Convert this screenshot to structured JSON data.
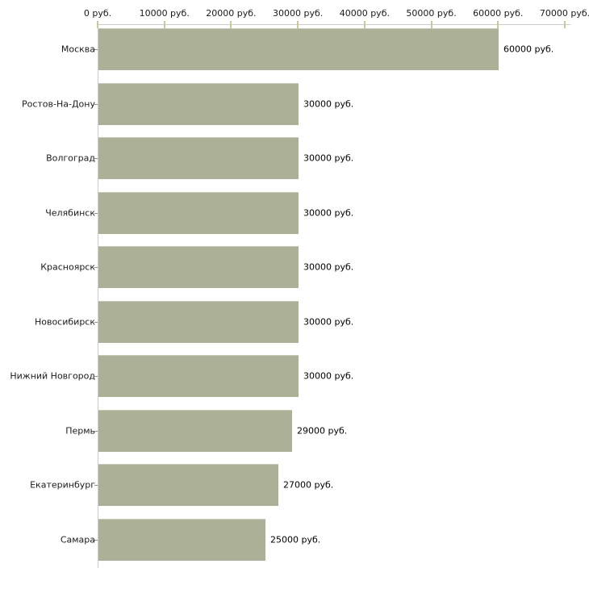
{
  "page": {
    "background": "#ffffff"
  },
  "chart_data": {
    "type": "bar",
    "orientation": "horizontal",
    "title": "",
    "xlabel": "",
    "ylabel": "",
    "unit": "руб.",
    "grid": false,
    "legend_position": "none",
    "categories": [
      "Москва",
      "Ростов-На-Дону",
      "Волгоград",
      "Челябинск",
      "Красноярск",
      "Новосибирск",
      "Нижний Новгород",
      "Пермь",
      "Екатеринбург",
      "Самара"
    ],
    "values": [
      60000,
      30000,
      30000,
      30000,
      30000,
      30000,
      30000,
      29000,
      27000,
      25000
    ],
    "value_labels": [
      "60000 руб.",
      "30000 руб.",
      "30000 руб.",
      "30000 руб.",
      "30000 руб.",
      "30000 руб.",
      "30000 руб.",
      "29000 руб.",
      "27000 руб.",
      "25000 руб."
    ],
    "x_axis": {
      "min": 0,
      "max": 70000,
      "tick_position": "top",
      "ticks": [
        {
          "value": 0,
          "label": "0 руб."
        },
        {
          "value": 10000,
          "label": "10000 руб."
        },
        {
          "value": 20000,
          "label": "20000 руб."
        },
        {
          "value": 30000,
          "label": "30000 руб."
        },
        {
          "value": 40000,
          "label": "40000 руб."
        },
        {
          "value": 50000,
          "label": "50000 руб."
        },
        {
          "value": 60000,
          "label": "60000 руб."
        },
        {
          "value": 70000,
          "label": "70000 руб."
        }
      ]
    },
    "colors": {
      "bar": "#abb096",
      "axis_line": "#cccccc",
      "axis_tick": "#ccc6a0",
      "category_tick": "#8c8c8c",
      "tick_label_text": "#1a1a1a",
      "category_text": "#1a1a1a",
      "value_text": "#000000"
    }
  }
}
